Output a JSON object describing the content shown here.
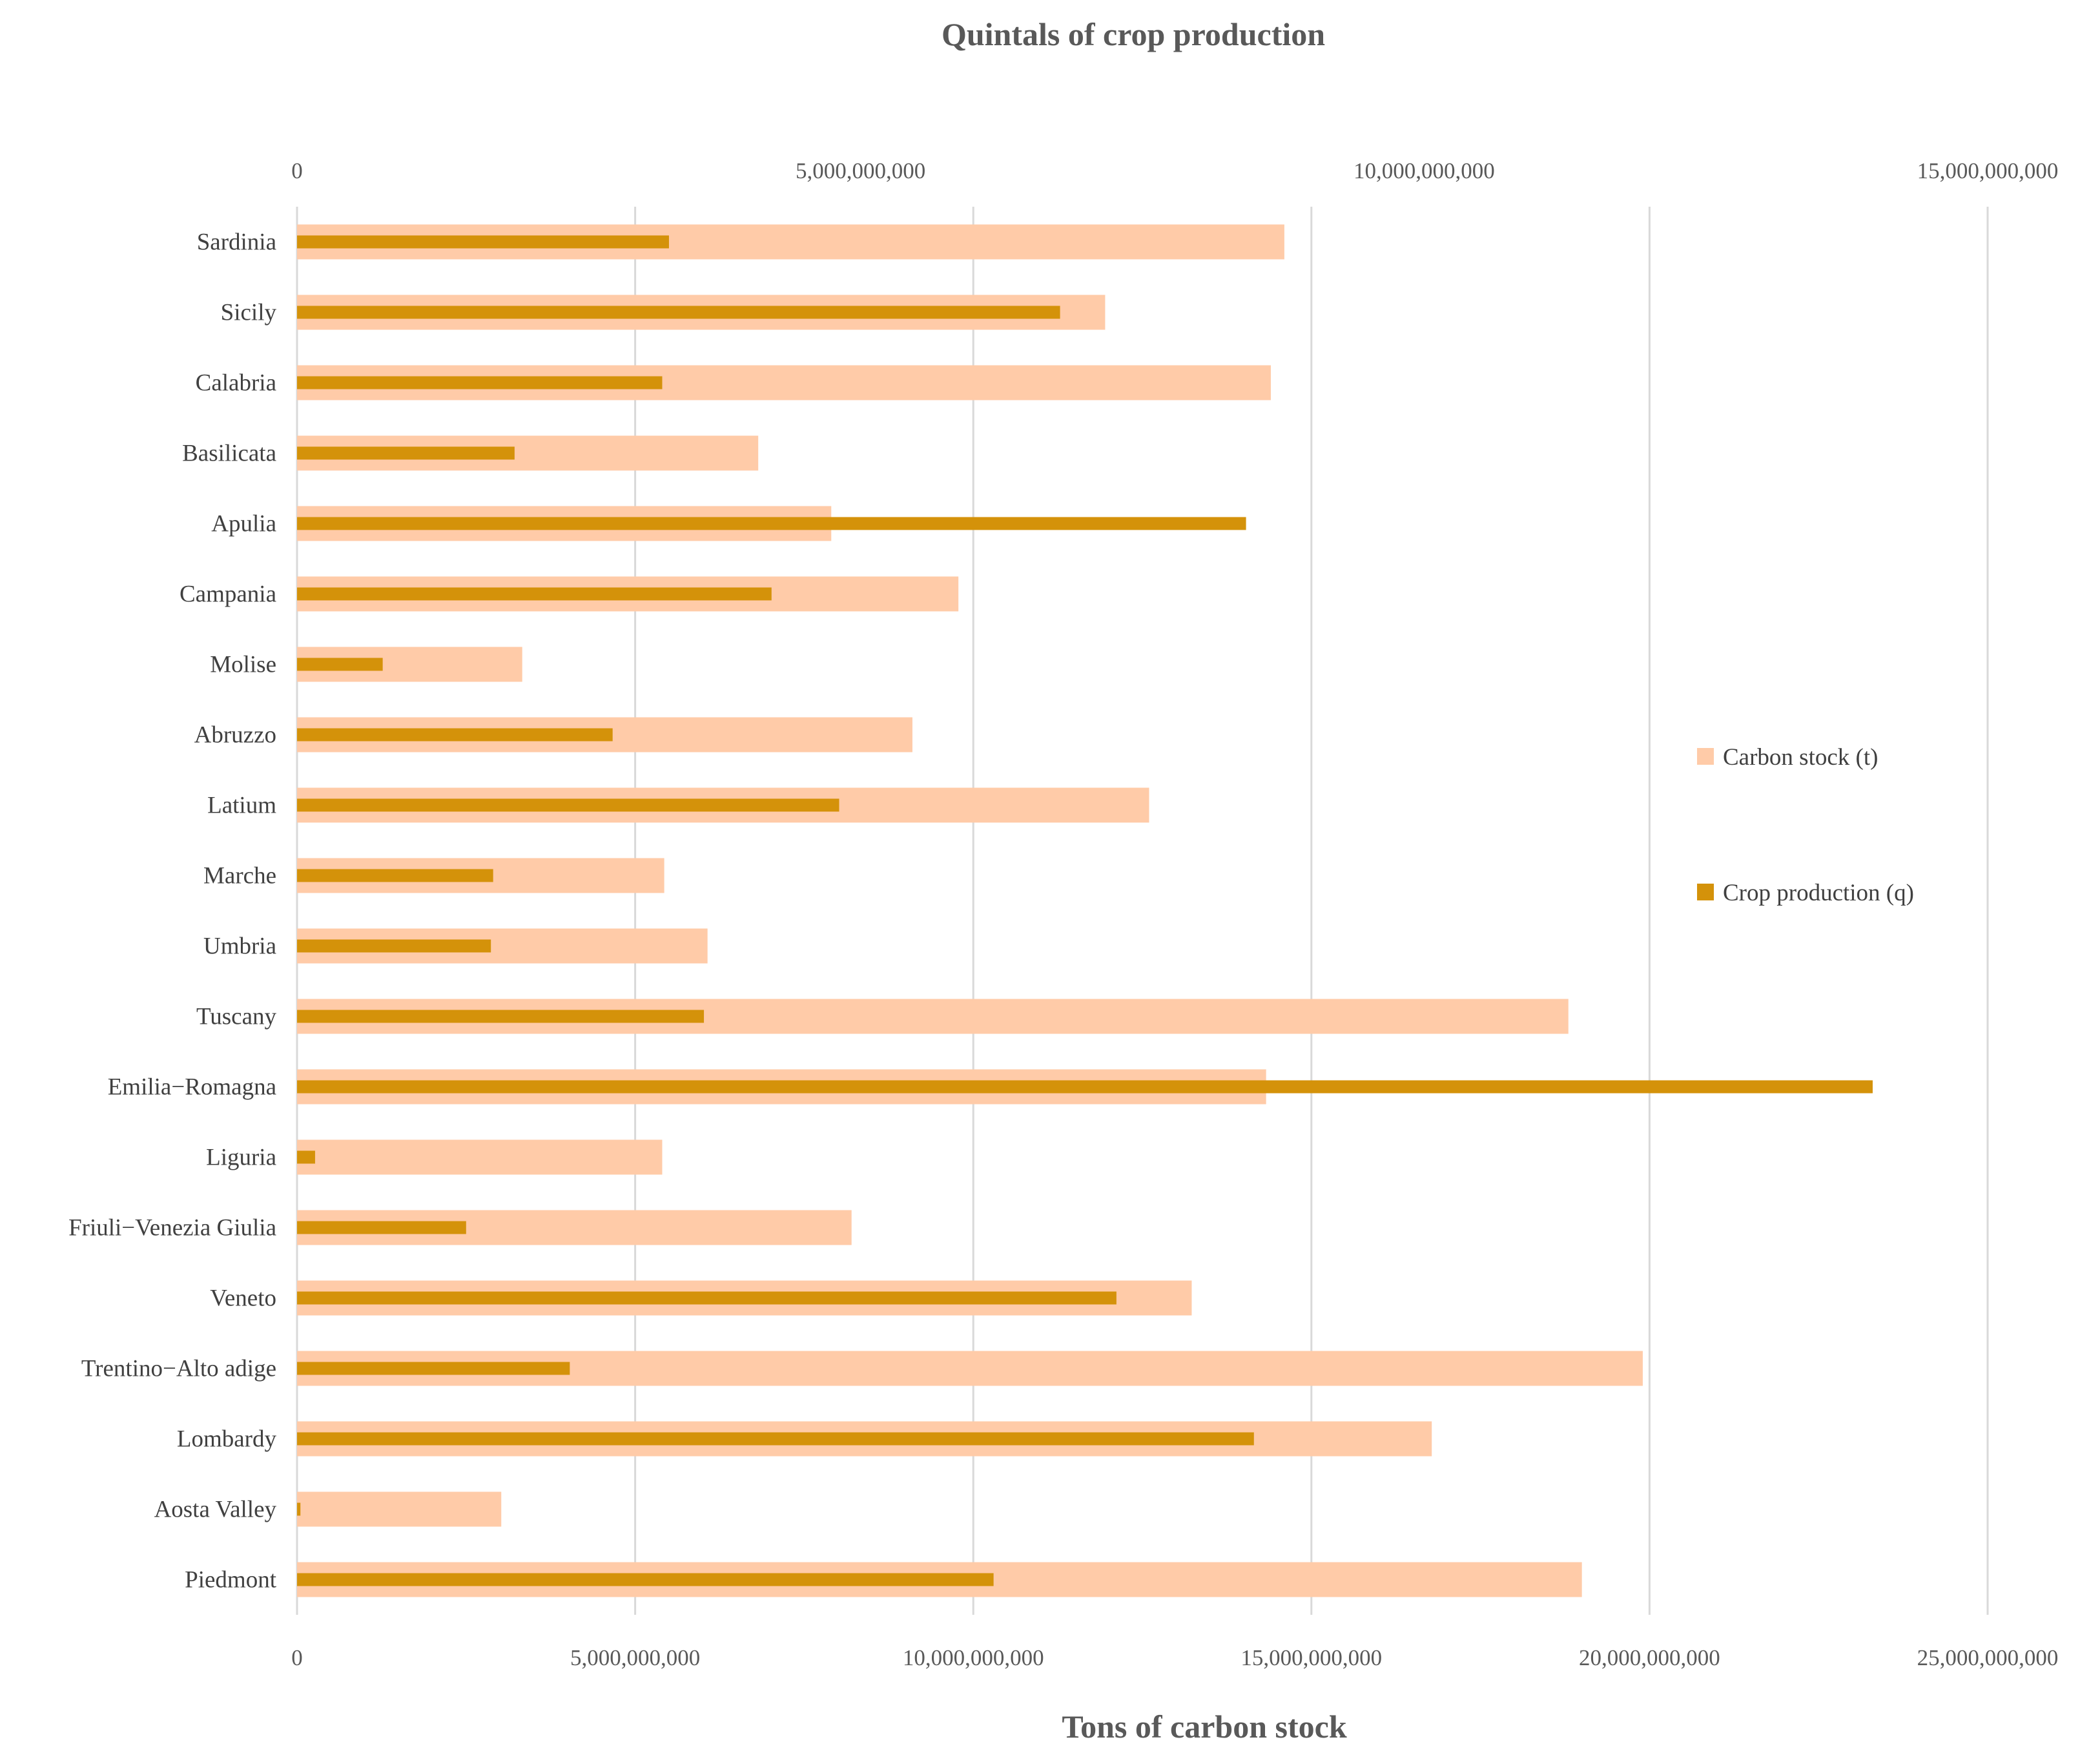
{
  "chart_data": {
    "type": "bar",
    "orientation": "horizontal",
    "title_top": "Quintals of crop production",
    "title_bottom": "Tons of carbon stock",
    "categories": [
      "Sardinia",
      "Sicily",
      "Calabria",
      "Basilicata",
      "Apulia",
      "Campania",
      "Molise",
      "Abruzzo",
      "Latium",
      "Marche",
      "Umbria",
      "Tuscany",
      "Emilia−Romagna",
      "Liguria",
      "Friuli−Venezia Giulia",
      "Veneto",
      "Trentino−Alto adige",
      "Lombardy",
      "Aosta Valley",
      "Piedmont"
    ],
    "series": [
      {
        "name": "Carbon stock (t)",
        "axis": "bottom",
        "color": "#FFCBA8",
        "values": [
          14600000000,
          11950000000,
          14400000000,
          6820000000,
          7900000000,
          9780000000,
          3330000000,
          9100000000,
          12600000000,
          5430000000,
          6070000000,
          18800000000,
          14330000000,
          5400000000,
          8200000000,
          13230000000,
          19900000000,
          16780000000,
          3020000000,
          19000000000
        ]
      },
      {
        "name": "Crop production (q)",
        "axis": "top",
        "color": "#D4920A",
        "values": [
          3300000000,
          6770000000,
          3240000000,
          1930000000,
          8420000000,
          4210000000,
          760000000,
          2800000000,
          4810000000,
          1740000000,
          1720000000,
          3610000000,
          13980000000,
          160000000,
          1500000000,
          7270000000,
          2420000000,
          8490000000,
          30000000,
          6180000000
        ]
      }
    ],
    "x_bottom": {
      "range": [
        0,
        25000000000
      ],
      "ticks": [
        0,
        5000000000,
        10000000000,
        15000000000,
        20000000000,
        25000000000
      ],
      "tick_labels": [
        "0",
        "5,000,000,000",
        "10,000,000,000",
        "15,000,000,000",
        "20,000,000,000",
        "25,000,000,000"
      ]
    },
    "x_top": {
      "range": [
        0,
        15000000000
      ],
      "ticks": [
        0,
        5000000000,
        10000000000,
        15000000000
      ],
      "tick_labels": [
        "0",
        "5,000,000,000",
        "10,000,000,000",
        "15,000,000,000"
      ]
    },
    "grid": true,
    "legend": {
      "position": "right",
      "entries": [
        "Carbon stock (t)",
        "Crop production (q)"
      ]
    }
  }
}
